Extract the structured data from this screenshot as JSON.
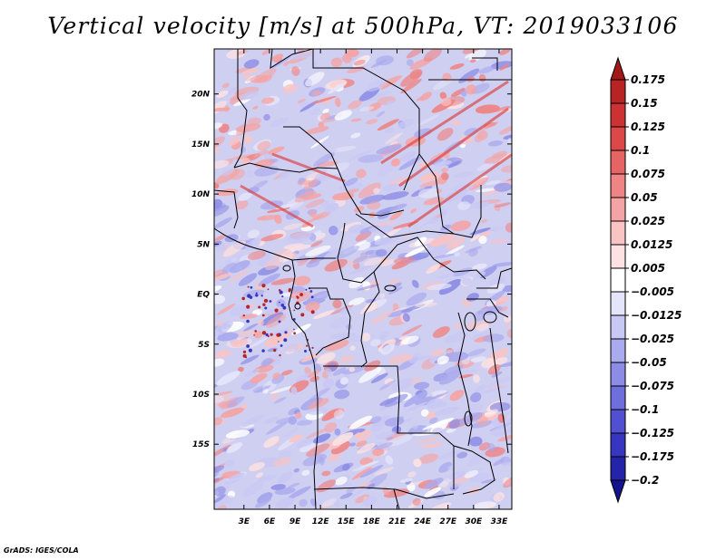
{
  "title": "Vertical velocity [m/s] at 500hPa, VT: 2019033106",
  "credit": "GrADS: IGES/COLA",
  "map": {
    "field": "500hPa vertical velocity",
    "lon_range": [
      -0.5,
      34.5
    ],
    "lat_range": [
      -21.5,
      24.5
    ],
    "lat_ticks": [
      {
        "value": 20,
        "label": "20N"
      },
      {
        "value": 15,
        "label": "15N"
      },
      {
        "value": 10,
        "label": "10N"
      },
      {
        "value": 5,
        "label": "5N"
      },
      {
        "value": 0,
        "label": "EQ"
      },
      {
        "value": -5,
        "label": "5S"
      },
      {
        "value": -10,
        "label": "10S"
      },
      {
        "value": -15,
        "label": "15S"
      }
    ],
    "lon_ticks": [
      {
        "value": 3,
        "label": "3E"
      },
      {
        "value": 6,
        "label": "6E"
      },
      {
        "value": 9,
        "label": "9E"
      },
      {
        "value": 12,
        "label": "12E"
      },
      {
        "value": 15,
        "label": "15E"
      },
      {
        "value": 18,
        "label": "18E"
      },
      {
        "value": 21,
        "label": "21E"
      },
      {
        "value": 24,
        "label": "24E"
      },
      {
        "value": 27,
        "label": "27E"
      },
      {
        "value": 30,
        "label": "30E"
      },
      {
        "value": 33,
        "label": "33E"
      }
    ]
  },
  "colorbar": {
    "labels": [
      "0.175",
      "0.15",
      "0.125",
      "0.1",
      "0.075",
      "0.05",
      "0.025",
      "0.0125",
      "0.005",
      "−0.005",
      "−0.0125",
      "−0.025",
      "−0.05",
      "−0.075",
      "−0.1",
      "−0.125",
      "−0.175",
      "−0.2"
    ],
    "colors": [
      "#a01818",
      "#b82424",
      "#cc3232",
      "#dc4848",
      "#e66464",
      "#ee8484",
      "#f4a4a4",
      "#f8c4c4",
      "#fce2e2",
      "#ffffff",
      "#e4e4fa",
      "#c8c8f4",
      "#aaaaee",
      "#8c8ce6",
      "#6e6edc",
      "#5050d0",
      "#3636c0",
      "#2424a8",
      "#14148e"
    ]
  }
}
